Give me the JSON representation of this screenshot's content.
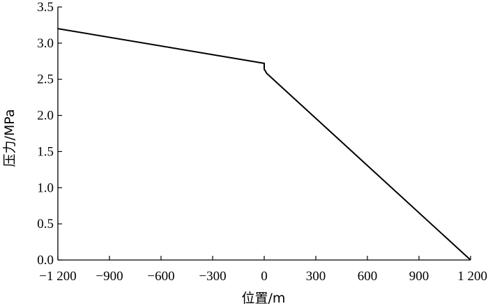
{
  "chart_data": {
    "type": "line",
    "title": "",
    "xlabel": "位置/m",
    "ylabel": "压力/MPa",
    "xlim": [
      -1200,
      1200
    ],
    "ylim": [
      0,
      3.5
    ],
    "xticks": [
      -1200,
      -900,
      -600,
      -300,
      0,
      300,
      600,
      900,
      1200
    ],
    "xtick_labels": [
      "−1 200",
      "−900",
      "−600",
      "−300",
      "0",
      "300",
      "600",
      "900",
      "1 200"
    ],
    "yticks": [
      0,
      0.5,
      1.0,
      1.5,
      2.0,
      2.5,
      3.0,
      3.5
    ],
    "ytick_labels": [
      "0.0",
      "0.5",
      "1.0",
      "1.5",
      "2.0",
      "2.5",
      "3.0",
      "3.5"
    ],
    "grid": false,
    "legend": "none",
    "line_color": "#000000",
    "series": [
      {
        "x": [
          -1200,
          0,
          0,
          15,
          1200
        ],
        "y": [
          3.2,
          2.72,
          2.64,
          2.58,
          0
        ]
      }
    ]
  }
}
